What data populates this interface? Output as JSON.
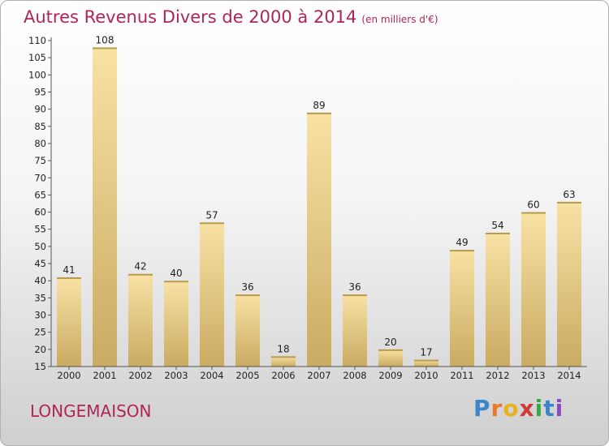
{
  "title": "Autres Revenus Divers de 2000 à 2014",
  "unit": "(en milliers d'€)",
  "commune": "LONGEMAISON",
  "logo": {
    "text": "Proxiti",
    "colors": [
      "#3a86c8",
      "#e8792b",
      "#e8b21a",
      "#d23a3a",
      "#3aa64a",
      "#3a86c8",
      "#8a4ac0"
    ]
  },
  "colors": {
    "title": "#b0245a",
    "bar_light": "#f8e2a4",
    "bar_dark": "#c9ab62",
    "axis": "#555555"
  },
  "chart_data": {
    "type": "bar",
    "categories": [
      "2000",
      "2001",
      "2002",
      "2003",
      "2004",
      "2005",
      "2006",
      "2007",
      "2008",
      "2009",
      "2010",
      "2011",
      "2012",
      "2013",
      "2014"
    ],
    "values": [
      41,
      108,
      42,
      40,
      57,
      36,
      18,
      89,
      36,
      20,
      17,
      49,
      54,
      60,
      63
    ],
    "ylim": [
      15,
      110
    ],
    "yticks": [
      15,
      20,
      25,
      30,
      35,
      40,
      45,
      50,
      55,
      60,
      65,
      70,
      75,
      80,
      85,
      90,
      95,
      100,
      105,
      110
    ],
    "grid": false,
    "legend": "none",
    "title": "Autres Revenus Divers de 2000 à 2014",
    "xlabel": "",
    "ylabel": ""
  }
}
